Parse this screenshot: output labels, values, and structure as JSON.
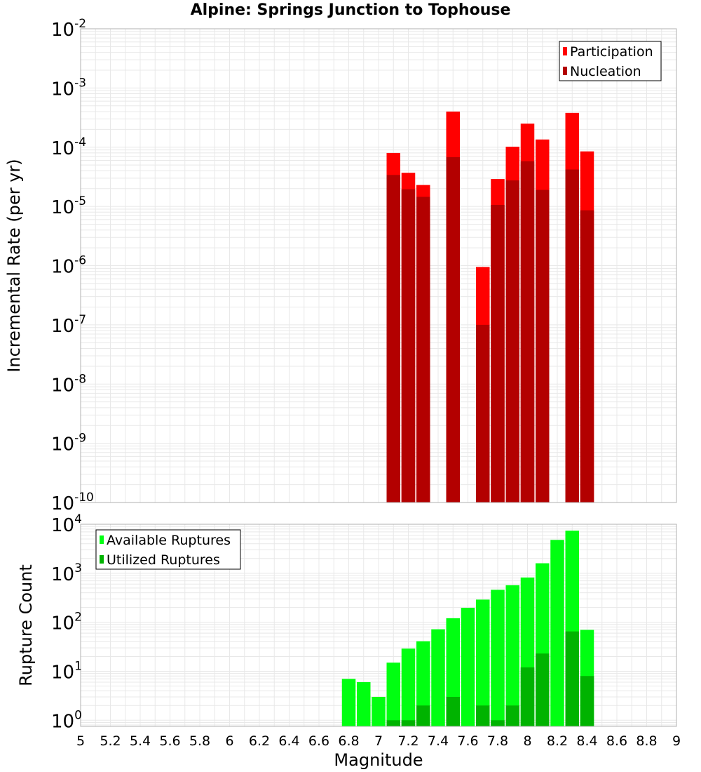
{
  "title": "Alpine: Springs Junction to Tophouse",
  "colors": {
    "participation": "#ff0000",
    "nucleation": "#b30000",
    "available": "#00ff11",
    "utilized": "#00b300",
    "grid": "#e8e8e8",
    "frame": "#b0b0b0"
  },
  "chart_data": [
    {
      "type": "bar",
      "ylabel": "Incremental Rate (per yr)",
      "yscale": "log",
      "ylim": [
        1e-10,
        0.01
      ],
      "xlim": [
        5,
        9
      ],
      "ytick_exponents": [
        "-10",
        "-9",
        "-8",
        "-7",
        "-6",
        "-5",
        "-4",
        "-3",
        "-2"
      ],
      "ytick_base": "10",
      "legend": {
        "position": "top-right",
        "entries": [
          "Participation",
          "Nucleation"
        ]
      },
      "series": [
        {
          "name": "Participation",
          "x": [
            7.1,
            7.2,
            7.3,
            7.5,
            7.7,
            7.8,
            7.9,
            8.0,
            8.1,
            8.3,
            8.4
          ],
          "values": [
            8e-05,
            3.7e-05,
            2.3e-05,
            0.0004,
            9.5e-07,
            2.9e-05,
            0.000102,
            0.00025,
            0.000135,
            0.00038,
            8.5e-05
          ]
        },
        {
          "name": "Nucleation",
          "x": [
            7.1,
            7.2,
            7.3,
            7.5,
            7.7,
            7.8,
            7.9,
            8.0,
            8.1,
            8.3,
            8.4
          ],
          "values": [
            3.4e-05,
            1.95e-05,
            1.45e-05,
            6.8e-05,
            1e-07,
            1.06e-05,
            2.75e-05,
            5.8e-05,
            1.9e-05,
            4.2e-05,
            8.6e-06
          ]
        }
      ]
    },
    {
      "type": "bar",
      "ylabel": "Rupture Count",
      "xlabel": "Magnitude",
      "yscale": "log",
      "ylim": [
        0.75,
        10000
      ],
      "xlim": [
        5,
        9
      ],
      "xticks": [
        "5",
        "5.2",
        "5.4",
        "5.6",
        "5.8",
        "6",
        "6.2",
        "6.4",
        "6.6",
        "6.8",
        "7",
        "7.2",
        "7.4",
        "7.6",
        "7.8",
        "8",
        "8.2",
        "8.4",
        "8.6",
        "8.8",
        "9"
      ],
      "ytick_exponents": [
        "0",
        "1",
        "2",
        "3",
        "4"
      ],
      "ytick_base": "10",
      "legend": {
        "position": "top-left",
        "entries": [
          "Available Ruptures",
          "Utilized Ruptures"
        ]
      },
      "series": [
        {
          "name": "Available Ruptures",
          "x": [
            6.8,
            6.9,
            7.0,
            7.1,
            7.2,
            7.3,
            7.4,
            7.5,
            7.6,
            7.7,
            7.8,
            7.9,
            8.0,
            8.1,
            8.2,
            8.3,
            8.4
          ],
          "values": [
            7,
            6,
            3,
            15,
            29,
            41,
            72,
            121,
            197,
            290,
            460,
            570,
            820,
            1600,
            4800,
            7400,
            70
          ]
        },
        {
          "name": "Utilized Ruptures",
          "x": [
            7.1,
            7.2,
            7.3,
            7.5,
            7.7,
            7.8,
            7.9,
            8.0,
            8.1,
            8.3,
            8.4
          ],
          "values": [
            1,
            1,
            2,
            3,
            2,
            1,
            2,
            12,
            23,
            65,
            8
          ]
        }
      ]
    }
  ]
}
